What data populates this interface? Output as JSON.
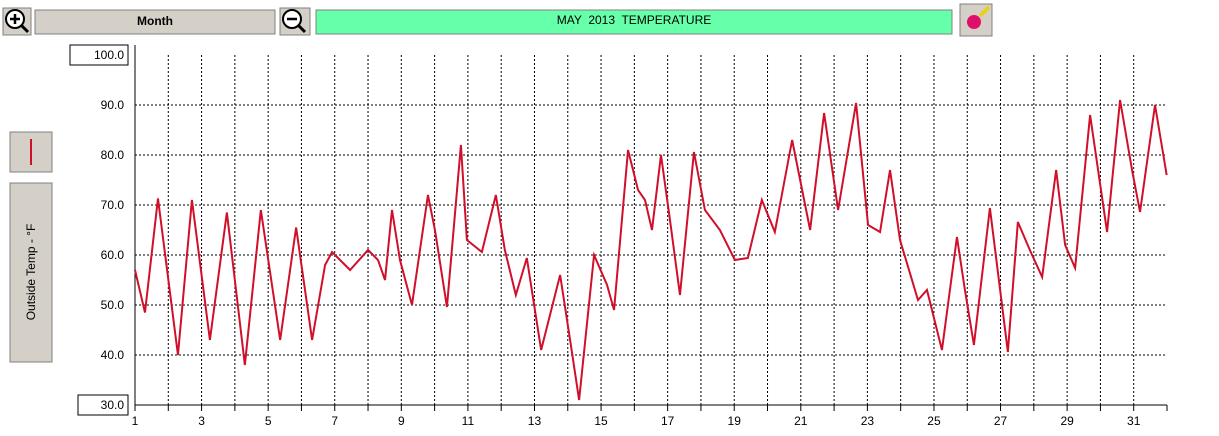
{
  "toolbar": {
    "period": "Month"
  },
  "chart_data": {
    "type": "line",
    "title": "MAY  2013  TEMPERATURE",
    "ylabel": "Outside Temp - °F",
    "xlim": [
      1,
      32
    ],
    "xticks": [
      1,
      3,
      5,
      7,
      9,
      11,
      13,
      15,
      17,
      19,
      21,
      23,
      25,
      27,
      29,
      31
    ],
    "x_minor_ticks": [
      2,
      4,
      6,
      8,
      10,
      12,
      14,
      16,
      18,
      20,
      22,
      24,
      26,
      28,
      30,
      32
    ],
    "ylim": [
      30,
      100
    ],
    "yticks": [
      {
        "value": 30,
        "label": "30.0"
      },
      {
        "value": 40,
        "label": "40.0"
      },
      {
        "value": 50,
        "label": "50.0"
      },
      {
        "value": 60,
        "label": "60.0"
      },
      {
        "value": 70,
        "label": "70.0"
      },
      {
        "value": 80,
        "label": "80.0"
      },
      {
        "value": 90,
        "label": "90.0"
      },
      {
        "value": 100,
        "label": "100.0"
      }
    ],
    "grid": true,
    "series": [
      {
        "color": "#d0102a",
        "x": [
          1.0,
          1.3,
          1.69,
          2.29,
          2.71,
          3.25,
          3.76,
          4.3,
          4.78,
          5.36,
          5.84,
          6.32,
          6.71,
          6.92,
          7.46,
          8.0,
          8.3,
          8.51,
          8.72,
          8.96,
          9.32,
          9.8,
          10.01,
          10.37,
          10.79,
          10.97,
          11.42,
          11.84,
          12.11,
          12.44,
          12.77,
          13.2,
          13.77,
          14.07,
          14.34,
          14.79,
          15.18,
          15.39,
          15.81,
          16.11,
          16.32,
          16.53,
          16.8,
          17.07,
          17.37,
          17.79,
          18.12,
          18.57,
          19.02,
          19.41,
          19.83,
          20.22,
          20.74,
          21.28,
          21.7,
          22.12,
          22.66,
          23.02,
          23.38,
          23.68,
          23.98,
          24.52,
          24.79,
          25.24,
          25.69,
          25.93,
          26.2,
          26.68,
          27.22,
          27.52,
          27.88,
          28.25,
          28.67,
          28.94,
          29.24,
          29.69,
          30.2,
          30.59,
          30.95,
          31.19,
          31.64,
          31.99
        ],
        "values": [
          57,
          48.5,
          71.3,
          40,
          71,
          43,
          68.5,
          38,
          69,
          43,
          65.5,
          43,
          58,
          60.6,
          57,
          61,
          59,
          55,
          69,
          59,
          50,
          72,
          65,
          49.6,
          82,
          63,
          60.6,
          72,
          61,
          52,
          59.4,
          41,
          56,
          43,
          31,
          60,
          54,
          49,
          81,
          73,
          71,
          65,
          80,
          67,
          52,
          80.6,
          69,
          65,
          59,
          59.4,
          71,
          64.6,
          83,
          65,
          88.4,
          69,
          90.4,
          66,
          64.6,
          77,
          63,
          51,
          53,
          41,
          63.6,
          53,
          42,
          69.4,
          40.6,
          66.6,
          61,
          55.6,
          77,
          62,
          57.4,
          88,
          64.6,
          91,
          77,
          68.6,
          90,
          76
        ]
      }
    ]
  }
}
